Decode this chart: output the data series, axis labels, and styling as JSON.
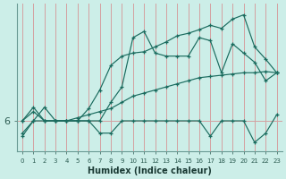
{
  "xlabel": "Humidex (Indice chaleur)",
  "background_color": "#cceee8",
  "line_color": "#1a6b5e",
  "grid_color_x": "#d4a0a0",
  "grid_color_y": "#b0c8c4",
  "xlim": [
    -0.5,
    23.5
  ],
  "ylim": [
    5.5,
    7.9
  ],
  "x": [
    0,
    1,
    2,
    3,
    4,
    5,
    6,
    7,
    8,
    9,
    10,
    11,
    12,
    13,
    14,
    15,
    16,
    17,
    18,
    19,
    20,
    21,
    22,
    23
  ],
  "line1_jagged": [
    5.75,
    6.0,
    6.0,
    6.0,
    6.0,
    6.0,
    6.0,
    5.8,
    5.8,
    6.0,
    6.0,
    6.0,
    6.0,
    6.0,
    6.0,
    6.0,
    6.0,
    5.75,
    6.0,
    6.0,
    6.0,
    5.65,
    5.8,
    6.1
  ],
  "line2_smooth": [
    6.0,
    6.15,
    6.0,
    6.0,
    6.0,
    6.05,
    6.1,
    6.15,
    6.2,
    6.3,
    6.4,
    6.45,
    6.5,
    6.55,
    6.6,
    6.65,
    6.7,
    6.72,
    6.74,
    6.76,
    6.78,
    6.78,
    6.8,
    6.78
  ],
  "line3_peaked": [
    5.8,
    6.0,
    6.22,
    6.0,
    6.0,
    6.0,
    6.0,
    6.0,
    6.3,
    6.55,
    7.35,
    7.45,
    7.1,
    7.05,
    7.05,
    7.05,
    7.35,
    7.3,
    6.78,
    7.25,
    7.1,
    6.95,
    6.65,
    6.78
  ],
  "line4_rising": [
    6.0,
    6.22,
    6.0,
    6.0,
    6.0,
    6.0,
    6.2,
    6.5,
    6.9,
    7.05,
    7.1,
    7.12,
    7.2,
    7.28,
    7.38,
    7.42,
    7.48,
    7.55,
    7.5,
    7.65,
    7.72,
    7.2,
    7.0,
    6.78
  ],
  "ytick_val": 6,
  "ytick_label": "6"
}
